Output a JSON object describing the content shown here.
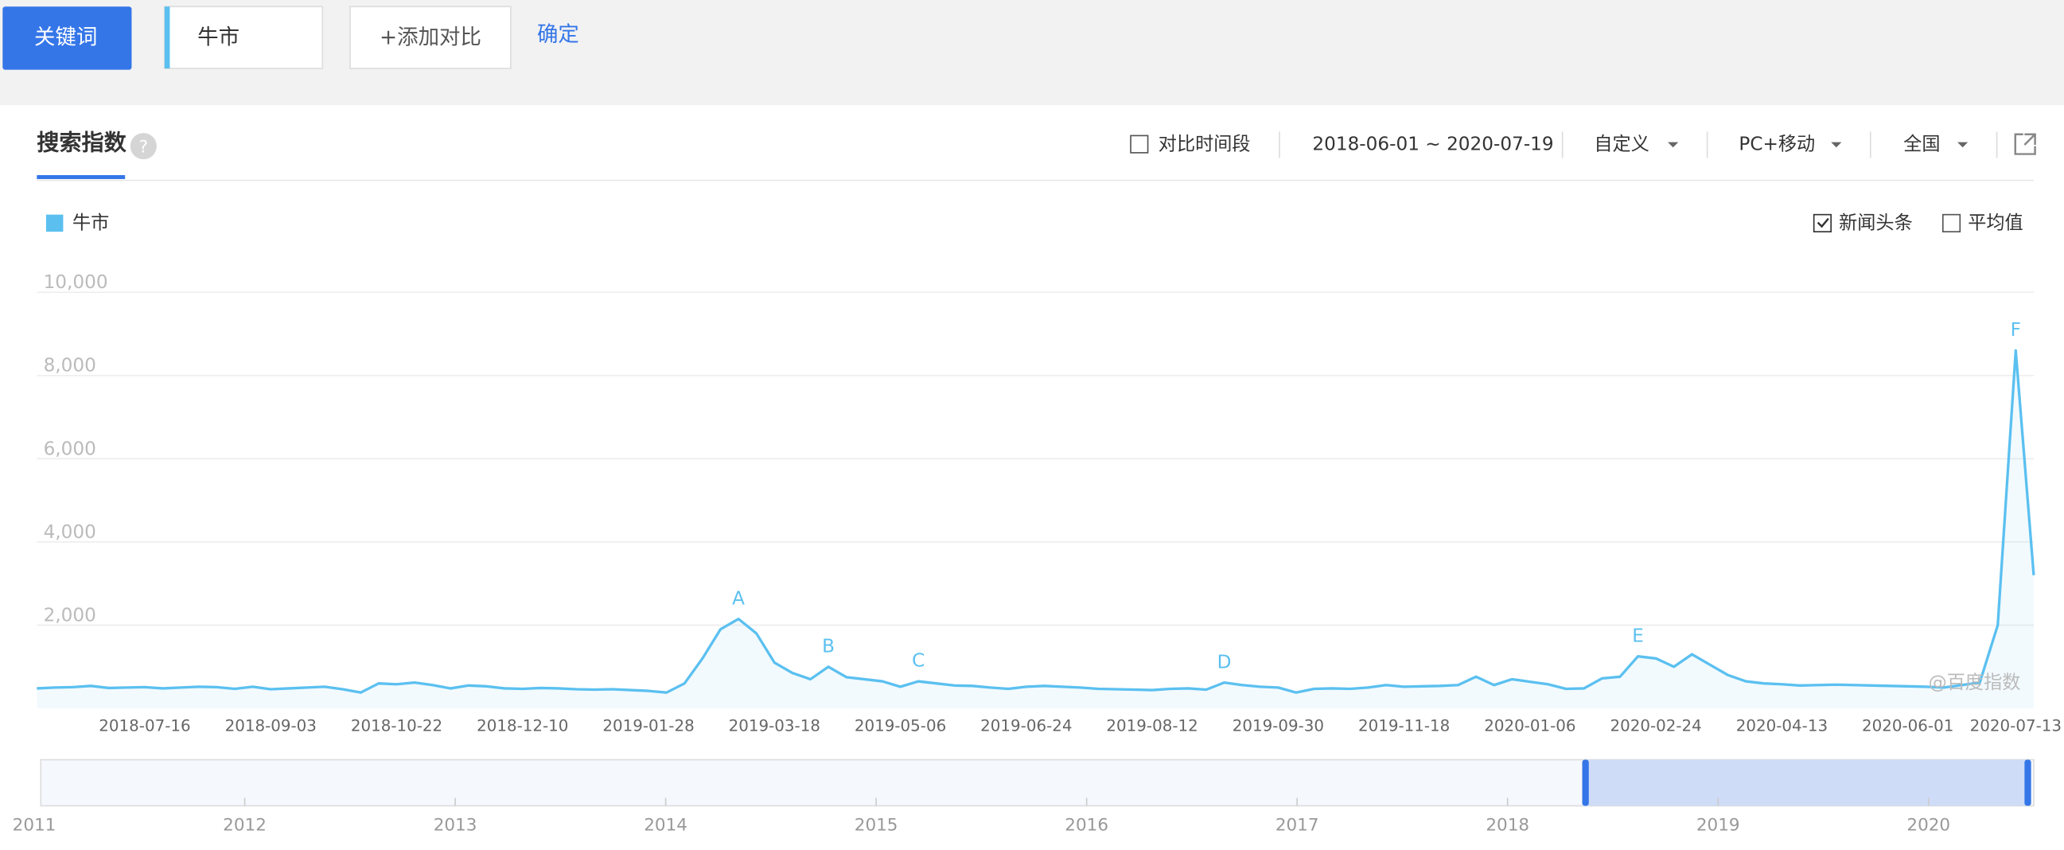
{
  "toolbar": {
    "keyword_button": "关键词",
    "keyword": "牛市",
    "add_compare": "+添加对比",
    "confirm": "确定"
  },
  "panel": {
    "tab": "搜索指数",
    "help": "?",
    "compare_period": "对比时间段",
    "date_range": "2018-06-01 ~ 2020-07-19",
    "period_mode": "自定义",
    "device": "PC+移动",
    "region": "全国",
    "news_headlines": "新闻头条",
    "average": "平均值",
    "watermark": "@百度指数"
  },
  "chart_data": {
    "type": "line",
    "categories": [
      null,
      null,
      null,
      null,
      null,
      null,
      "2018-07-16",
      null,
      null,
      null,
      null,
      null,
      null,
      "2018-09-03",
      null,
      null,
      null,
      null,
      null,
      null,
      "2018-10-22",
      null,
      null,
      null,
      null,
      null,
      null,
      "2018-12-10",
      null,
      null,
      null,
      null,
      null,
      null,
      "2019-01-28",
      null,
      null,
      null,
      null,
      null,
      null,
      "2019-03-18",
      null,
      null,
      null,
      null,
      null,
      null,
      "2019-05-06",
      null,
      null,
      null,
      null,
      null,
      null,
      "2019-06-24",
      null,
      null,
      null,
      null,
      null,
      null,
      "2019-08-12",
      null,
      null,
      null,
      null,
      null,
      null,
      "2019-09-30",
      null,
      null,
      null,
      null,
      null,
      null,
      "2019-11-18",
      null,
      null,
      null,
      null,
      null,
      null,
      "2020-01-06",
      null,
      null,
      null,
      null,
      null,
      null,
      "2020-02-24",
      null,
      null,
      null,
      null,
      null,
      null,
      "2020-04-13",
      null,
      null,
      null,
      null,
      null,
      null,
      "2020-06-01",
      null,
      null,
      null,
      null,
      null,
      "2020-07-13",
      null
    ],
    "series": [
      {
        "name": "牛市",
        "color": "#5bc0f0",
        "values": [
          480,
          500,
          510,
          540,
          490,
          500,
          510,
          480,
          500,
          520,
          510,
          470,
          520,
          460,
          480,
          500,
          520,
          460,
          380,
          600,
          580,
          620,
          560,
          480,
          550,
          530,
          480,
          470,
          490,
          480,
          460,
          450,
          460,
          440,
          420,
          380,
          600,
          1200,
          1900,
          2150,
          1800,
          1100,
          850,
          700,
          1000,
          750,
          700,
          650,
          520,
          650,
          600,
          550,
          540,
          500,
          470,
          520,
          540,
          520,
          500,
          470,
          460,
          450,
          440,
          470,
          480,
          450,
          620,
          560,
          520,
          500,
          380,
          470,
          480,
          470,
          500,
          560,
          520,
          530,
          540,
          560,
          760,
          560,
          700,
          640,
          580,
          470,
          480,
          720,
          760,
          1250,
          1200,
          1000,
          1300,
          1050,
          800,
          650,
          600,
          580,
          550,
          560,
          570,
          560,
          550,
          540,
          530,
          520,
          500,
          560,
          620,
          2000,
          8600,
          3200
        ]
      }
    ],
    "annotations": [
      {
        "text": "A",
        "at": 39
      },
      {
        "text": "B",
        "at": 44
      },
      {
        "text": "C",
        "at": 49
      },
      {
        "text": "D",
        "at": 66
      },
      {
        "text": "E",
        "at": 89
      },
      {
        "text": "F",
        "at": 110
      }
    ],
    "ylim": [
      0,
      10000
    ],
    "yticks": [
      {
        "value": 2000,
        "label": "2,000"
      },
      {
        "value": 4000,
        "label": "4,000"
      },
      {
        "value": 6000,
        "label": "6,000"
      },
      {
        "value": 8000,
        "label": "8,000"
      },
      {
        "value": 10000,
        "label": "10,000"
      }
    ],
    "grid": true
  },
  "navigator": {
    "years": [
      "2011",
      "2012",
      "2013",
      "2014",
      "2015",
      "2016",
      "2017",
      "2018",
      "2019",
      "2020"
    ]
  }
}
